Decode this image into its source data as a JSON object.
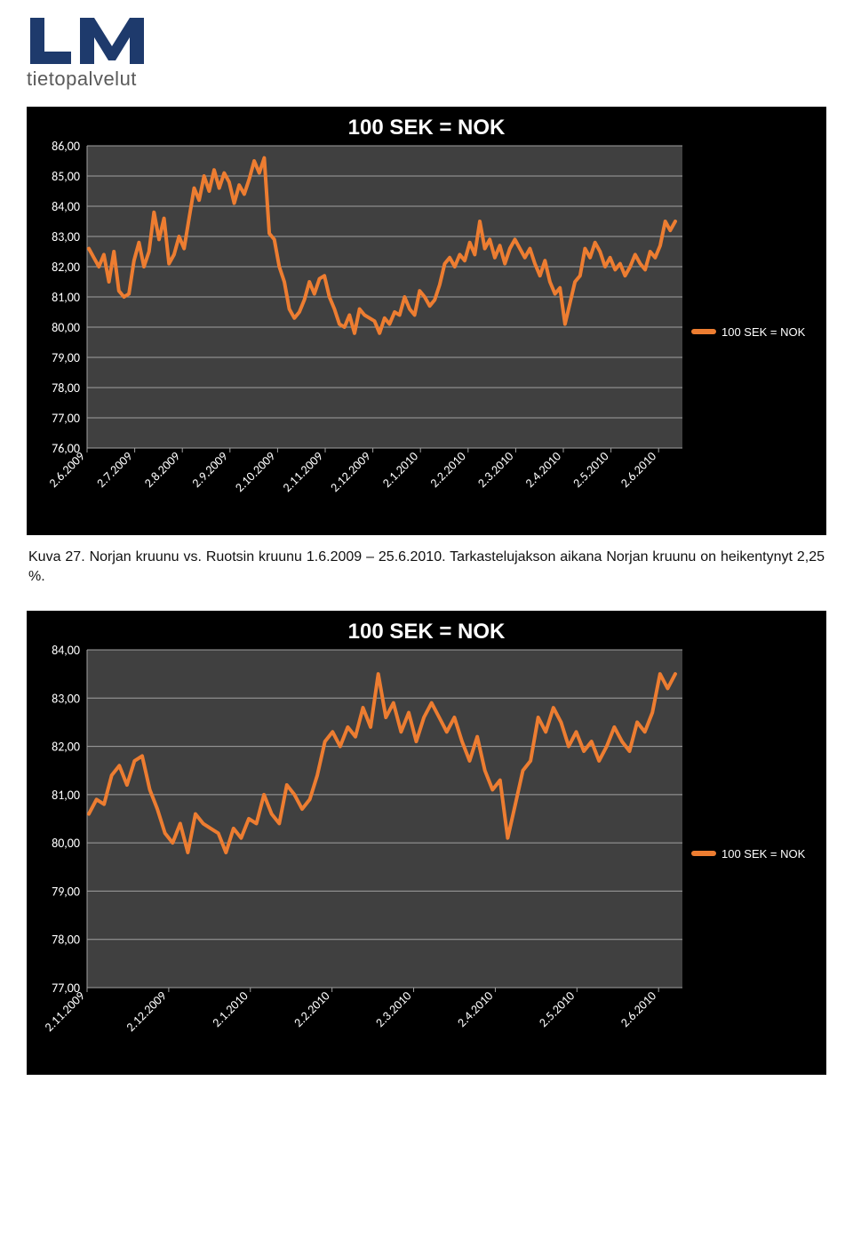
{
  "logo": {
    "subtitle": "tietopalvelut",
    "color": "#1e3a6c"
  },
  "caption": "Kuva 27. Norjan kruunu vs. Ruotsin kruunu 1.6.2009 – 25.6.2010. Tarkastelujakson aikana Norjan kruunu on heikentynyt 2,25 %.",
  "chart1": {
    "type": "line",
    "title": "100 SEK = NOK",
    "title_fontsize": 24,
    "background_color": "#000000",
    "plot_bg_color": "#404040",
    "grid_color": "#a0a0a0",
    "axis_label_color": "#ffffff",
    "line_color": "#ed7d31",
    "line_width": 4,
    "tick_fontsize": 14,
    "legend_label": "100 SEK = NOK",
    "ylim": [
      76,
      86
    ],
    "ytick_step": 1,
    "yticks": [
      "76,00",
      "77,00",
      "78,00",
      "79,00",
      "80,00",
      "81,00",
      "82,00",
      "83,00",
      "84,00",
      "85,00",
      "86,00"
    ],
    "xticks": [
      "2.6.2009",
      "2.7.2009",
      "2.8.2009",
      "2.9.2009",
      "2.10.2009",
      "2.11.2009",
      "2.12.2009",
      "2.1.2010",
      "2.2.2010",
      "2.3.2010",
      "2.4.2010",
      "2.5.2010",
      "2.6.2010"
    ],
    "x_rotation": -45,
    "data": [
      [
        0,
        82.6
      ],
      [
        0.5,
        82.3
      ],
      [
        1,
        82.0
      ],
      [
        1.5,
        82.4
      ],
      [
        2,
        81.5
      ],
      [
        2.5,
        82.5
      ],
      [
        3,
        81.2
      ],
      [
        3.5,
        81.0
      ],
      [
        4,
        81.1
      ],
      [
        4.5,
        82.2
      ],
      [
        5,
        82.8
      ],
      [
        5.5,
        82.0
      ],
      [
        6,
        82.5
      ],
      [
        6.5,
        83.8
      ],
      [
        7,
        82.9
      ],
      [
        7.5,
        83.6
      ],
      [
        8,
        82.1
      ],
      [
        8.5,
        82.4
      ],
      [
        9,
        83.0
      ],
      [
        9.5,
        82.6
      ],
      [
        10,
        83.6
      ],
      [
        10.5,
        84.6
      ],
      [
        11,
        84.2
      ],
      [
        11.5,
        85.0
      ],
      [
        12,
        84.5
      ],
      [
        12.5,
        85.2
      ],
      [
        13,
        84.6
      ],
      [
        13.5,
        85.1
      ],
      [
        14,
        84.8
      ],
      [
        14.5,
        84.1
      ],
      [
        15,
        84.7
      ],
      [
        15.5,
        84.4
      ],
      [
        16,
        84.9
      ],
      [
        16.5,
        85.5
      ],
      [
        17,
        85.1
      ],
      [
        17.5,
        85.6
      ],
      [
        18,
        83.1
      ],
      [
        18.5,
        82.9
      ],
      [
        19,
        82.0
      ],
      [
        19.5,
        81.5
      ],
      [
        20,
        80.6
      ],
      [
        20.5,
        80.3
      ],
      [
        21,
        80.5
      ],
      [
        21.5,
        80.9
      ],
      [
        22,
        81.5
      ],
      [
        22.5,
        81.1
      ],
      [
        23,
        81.6
      ],
      [
        23.5,
        81.7
      ],
      [
        24,
        81.0
      ],
      [
        24.5,
        80.6
      ],
      [
        25,
        80.1
      ],
      [
        25.5,
        80.0
      ],
      [
        26,
        80.4
      ],
      [
        26.5,
        79.8
      ],
      [
        27,
        80.6
      ],
      [
        27.5,
        80.4
      ],
      [
        28,
        80.3
      ],
      [
        28.5,
        80.2
      ],
      [
        29,
        79.8
      ],
      [
        29.5,
        80.3
      ],
      [
        30,
        80.1
      ],
      [
        30.5,
        80.5
      ],
      [
        31,
        80.4
      ],
      [
        31.5,
        81.0
      ],
      [
        32,
        80.6
      ],
      [
        32.5,
        80.4
      ],
      [
        33,
        81.2
      ],
      [
        33.5,
        81.0
      ],
      [
        34,
        80.7
      ],
      [
        34.5,
        80.9
      ],
      [
        35,
        81.4
      ],
      [
        35.5,
        82.1
      ],
      [
        36,
        82.3
      ],
      [
        36.5,
        82.0
      ],
      [
        37,
        82.4
      ],
      [
        37.5,
        82.2
      ],
      [
        38,
        82.8
      ],
      [
        38.5,
        82.4
      ],
      [
        39,
        83.5
      ],
      [
        39.5,
        82.6
      ],
      [
        40,
        82.9
      ],
      [
        40.5,
        82.3
      ],
      [
        41,
        82.7
      ],
      [
        41.5,
        82.1
      ],
      [
        42,
        82.6
      ],
      [
        42.5,
        82.9
      ],
      [
        43,
        82.6
      ],
      [
        43.5,
        82.3
      ],
      [
        44,
        82.6
      ],
      [
        44.5,
        82.1
      ],
      [
        45,
        81.7
      ],
      [
        45.5,
        82.2
      ],
      [
        46,
        81.5
      ],
      [
        46.5,
        81.1
      ],
      [
        47,
        81.3
      ],
      [
        47.5,
        80.1
      ],
      [
        48,
        80.8
      ],
      [
        48.5,
        81.5
      ],
      [
        49,
        81.7
      ],
      [
        49.5,
        82.6
      ],
      [
        50,
        82.3
      ],
      [
        50.5,
        82.8
      ],
      [
        51,
        82.5
      ],
      [
        51.5,
        82.0
      ],
      [
        52,
        82.3
      ],
      [
        52.5,
        81.9
      ],
      [
        53,
        82.1
      ],
      [
        53.5,
        81.7
      ],
      [
        54,
        82.0
      ],
      [
        54.5,
        82.4
      ],
      [
        55,
        82.1
      ],
      [
        55.5,
        81.9
      ],
      [
        56,
        82.5
      ],
      [
        56.5,
        82.3
      ],
      [
        57,
        82.7
      ],
      [
        57.5,
        83.5
      ],
      [
        58,
        83.2
      ],
      [
        58.5,
        83.5
      ]
    ]
  },
  "chart2": {
    "type": "line",
    "title": "100 SEK = NOK",
    "title_fontsize": 24,
    "background_color": "#000000",
    "plot_bg_color": "#404040",
    "grid_color": "#a0a0a0",
    "axis_label_color": "#ffffff",
    "line_color": "#ed7d31",
    "line_width": 4,
    "tick_fontsize": 14,
    "legend_label": "100 SEK = NOK",
    "ylim": [
      77,
      84
    ],
    "ytick_step": 1,
    "yticks": [
      "77,00",
      "78,00",
      "79,00",
      "80,00",
      "81,00",
      "82,00",
      "83,00",
      "84,00"
    ],
    "xticks": [
      "2.11.2009",
      "2.12.2009",
      "2.1.2010",
      "2.2.2010",
      "2.3.2010",
      "2.4.2010",
      "2.5.2010",
      "2.6.2010"
    ],
    "x_rotation": -45,
    "data": [
      [
        0,
        80.6
      ],
      [
        0.5,
        80.9
      ],
      [
        1,
        80.8
      ],
      [
        1.5,
        81.4
      ],
      [
        2,
        81.6
      ],
      [
        2.5,
        81.2
      ],
      [
        3,
        81.7
      ],
      [
        3.5,
        81.8
      ],
      [
        4,
        81.1
      ],
      [
        4.5,
        80.7
      ],
      [
        5,
        80.2
      ],
      [
        5.5,
        80.0
      ],
      [
        6,
        80.4
      ],
      [
        6.5,
        79.8
      ],
      [
        7,
        80.6
      ],
      [
        7.5,
        80.4
      ],
      [
        8,
        80.3
      ],
      [
        8.5,
        80.2
      ],
      [
        9,
        79.8
      ],
      [
        9.5,
        80.3
      ],
      [
        10,
        80.1
      ],
      [
        10.5,
        80.5
      ],
      [
        11,
        80.4
      ],
      [
        11.5,
        81.0
      ],
      [
        12,
        80.6
      ],
      [
        12.5,
        80.4
      ],
      [
        13,
        81.2
      ],
      [
        13.5,
        81.0
      ],
      [
        14,
        80.7
      ],
      [
        14.5,
        80.9
      ],
      [
        15,
        81.4
      ],
      [
        15.5,
        82.1
      ],
      [
        16,
        82.3
      ],
      [
        16.5,
        82.0
      ],
      [
        17,
        82.4
      ],
      [
        17.5,
        82.2
      ],
      [
        18,
        82.8
      ],
      [
        18.5,
        82.4
      ],
      [
        19,
        83.5
      ],
      [
        19.5,
        82.6
      ],
      [
        20,
        82.9
      ],
      [
        20.5,
        82.3
      ],
      [
        21,
        82.7
      ],
      [
        21.5,
        82.1
      ],
      [
        22,
        82.6
      ],
      [
        22.5,
        82.9
      ],
      [
        23,
        82.6
      ],
      [
        23.5,
        82.3
      ],
      [
        24,
        82.6
      ],
      [
        24.5,
        82.1
      ],
      [
        25,
        81.7
      ],
      [
        25.5,
        82.2
      ],
      [
        26,
        81.5
      ],
      [
        26.5,
        81.1
      ],
      [
        27,
        81.3
      ],
      [
        27.5,
        80.1
      ],
      [
        28,
        80.8
      ],
      [
        28.5,
        81.5
      ],
      [
        29,
        81.7
      ],
      [
        29.5,
        82.6
      ],
      [
        30,
        82.3
      ],
      [
        30.5,
        82.8
      ],
      [
        31,
        82.5
      ],
      [
        31.5,
        82.0
      ],
      [
        32,
        82.3
      ],
      [
        32.5,
        81.9
      ],
      [
        33,
        82.1
      ],
      [
        33.5,
        81.7
      ],
      [
        34,
        82.0
      ],
      [
        34.5,
        82.4
      ],
      [
        35,
        82.1
      ],
      [
        35.5,
        81.9
      ],
      [
        36,
        82.5
      ],
      [
        36.5,
        82.3
      ],
      [
        37,
        82.7
      ],
      [
        37.5,
        83.5
      ],
      [
        38,
        83.2
      ],
      [
        38.5,
        83.5
      ]
    ]
  }
}
